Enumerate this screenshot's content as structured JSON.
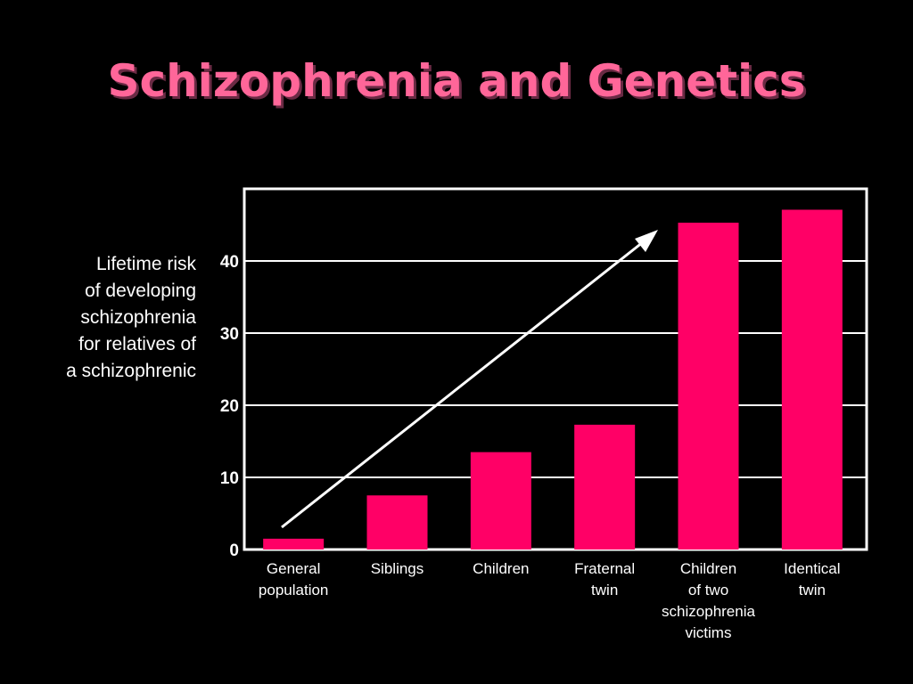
{
  "title": "Schizophrenia and Genetics",
  "chart_data": {
    "type": "bar",
    "title": "Schizophrenia and Genetics",
    "ylabel_lines": [
      "Lifetime risk",
      "of developing",
      "schizophrenia",
      "for relatives of",
      "a schizophrenic"
    ],
    "xlabel": "",
    "categories": [
      [
        "General",
        "population"
      ],
      [
        "Siblings"
      ],
      [
        "Children"
      ],
      [
        "Fraternal",
        "twin"
      ],
      [
        "Children",
        "of two",
        "schizophrenia",
        "victims"
      ],
      [
        "Identical",
        "twin"
      ]
    ],
    "values": [
      1.5,
      7.5,
      13.5,
      17.3,
      45.3,
      47.1
    ],
    "yticks": [
      0,
      10,
      20,
      30,
      40
    ],
    "ylim": [
      0,
      50
    ],
    "grid": true,
    "bar_color": "#ff0066",
    "annotation": "upward-trend-arrow"
  },
  "colors": {
    "background": "#000000",
    "title": "#ff6699",
    "bar": "#ff0066",
    "text": "#ffffff"
  }
}
